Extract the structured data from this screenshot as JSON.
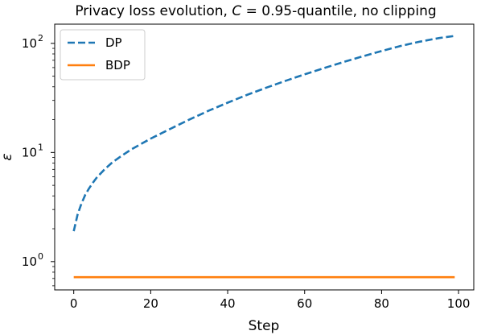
{
  "chart_data": {
    "type": "line",
    "title": "Privacy loss evolution, C = 0.95-quantile, no clipping",
    "xlabel": "Step",
    "ylabel": "ε",
    "yscale": "log",
    "xlim": [
      -4.95,
      103.95
    ],
    "ylim": [
      0.55,
      150
    ],
    "x_ticks": [
      0,
      20,
      40,
      60,
      80,
      100
    ],
    "y_ticks": [
      {
        "value": 1,
        "base": "10",
        "exp": "0"
      },
      {
        "value": 10,
        "base": "10",
        "exp": "1"
      },
      {
        "value": 100,
        "base": "10",
        "exp": "2"
      }
    ],
    "legend_position": "top-left",
    "grid": false,
    "series": [
      {
        "name": "DP",
        "color": "#1f77b4",
        "style": "dashed",
        "x": [
          0,
          1,
          2,
          3,
          4,
          5,
          6,
          8,
          10,
          12,
          15,
          20,
          25,
          30,
          35,
          40,
          45,
          50,
          55,
          60,
          65,
          70,
          75,
          80,
          85,
          90,
          95,
          99
        ],
        "y": [
          1.9,
          2.7,
          3.4,
          4.1,
          4.7,
          5.3,
          5.9,
          7.0,
          8.1,
          9.1,
          10.7,
          13.4,
          16.4,
          20.0,
          24.1,
          28.6,
          33.7,
          39.2,
          45.3,
          52.0,
          59.3,
          67.3,
          75.9,
          85.1,
          94.8,
          103.8,
          112.0,
          117.0
        ]
      },
      {
        "name": "BDP",
        "color": "#ff7f0e",
        "style": "solid",
        "x": [
          0,
          99
        ],
        "y": [
          0.72,
          0.72
        ]
      }
    ]
  }
}
